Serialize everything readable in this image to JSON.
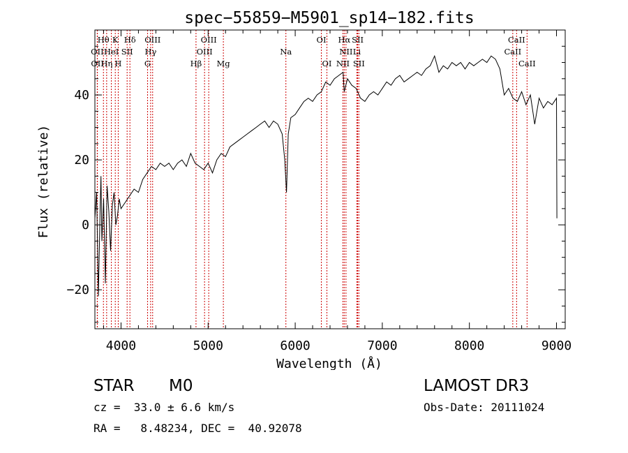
{
  "chart_data": {
    "type": "line",
    "title": "spec−55859−M5901_sp14−182.fits",
    "xlabel": "Wavelength (Å)",
    "ylabel": "Flux (relative)",
    "xlim": [
      3700,
      9100
    ],
    "ylim": [
      -32,
      60
    ],
    "x_ticks": [
      4000,
      5000,
      6000,
      7000,
      8000,
      9000
    ],
    "x_tick_labels": [
      "4000",
      "5000",
      "6000",
      "7000",
      "8000",
      "9000"
    ],
    "y_ticks": [
      -20,
      0,
      20,
      40
    ],
    "y_tick_labels": [
      "−20",
      "0",
      "20",
      "40"
    ],
    "series": [
      {
        "name": "flux",
        "x": [
          3700,
          3720,
          3740,
          3760,
          3770,
          3780,
          3800,
          3820,
          3840,
          3860,
          3880,
          3900,
          3920,
          3940,
          3960,
          3980,
          4000,
          4050,
          4100,
          4150,
          4200,
          4250,
          4300,
          4350,
          4400,
          4450,
          4500,
          4550,
          4600,
          4650,
          4700,
          4750,
          4800,
          4850,
          4900,
          4950,
          5000,
          5050,
          5100,
          5150,
          5200,
          5250,
          5300,
          5350,
          5400,
          5450,
          5500,
          5550,
          5600,
          5650,
          5700,
          5750,
          5800,
          5850,
          5880,
          5900,
          5920,
          5950,
          6000,
          6050,
          6100,
          6150,
          6200,
          6250,
          6300,
          6350,
          6400,
          6450,
          6500,
          6550,
          6563,
          6600,
          6650,
          6700,
          6750,
          6800,
          6850,
          6900,
          6950,
          7000,
          7050,
          7100,
          7150,
          7200,
          7250,
          7300,
          7350,
          7400,
          7450,
          7500,
          7550,
          7600,
          7650,
          7700,
          7750,
          7800,
          7850,
          7900,
          7950,
          8000,
          8050,
          8100,
          8150,
          8200,
          8250,
          8300,
          8350,
          8400,
          8450,
          8500,
          8550,
          8600,
          8650,
          8700,
          8750,
          8800,
          8850,
          8900,
          8950,
          9000,
          9005
        ],
        "y": [
          2,
          10,
          -22,
          5,
          15,
          -5,
          8,
          -18,
          12,
          4,
          -8,
          6,
          10,
          0,
          3,
          8,
          5,
          7,
          9,
          11,
          10,
          14,
          16,
          18,
          17,
          19,
          18,
          19,
          17,
          19,
          20,
          18,
          22,
          19,
          18,
          17,
          19,
          16,
          20,
          22,
          21,
          24,
          25,
          26,
          27,
          28,
          29,
          30,
          31,
          32,
          30,
          32,
          31,
          28,
          20,
          10,
          28,
          33,
          34,
          36,
          38,
          39,
          38,
          40,
          41,
          44,
          43,
          45,
          46,
          47,
          41,
          45,
          43,
          42,
          39,
          38,
          40,
          41,
          40,
          42,
          44,
          43,
          45,
          46,
          44,
          45,
          46,
          47,
          46,
          48,
          49,
          52,
          47,
          49,
          48,
          50,
          49,
          50,
          48,
          50,
          49,
          50,
          51,
          50,
          52,
          51,
          48,
          40,
          42,
          39,
          38,
          41,
          37,
          40,
          31,
          39,
          36,
          38,
          37,
          39,
          2
        ]
      }
    ],
    "line_markers": [
      {
        "label": "Hθ",
        "x": 3798,
        "row": 1
      },
      {
        "label": "K",
        "x": 3934,
        "row": 1
      },
      {
        "label": "Hδ",
        "x": 4102,
        "row": 1
      },
      {
        "label": "OIII",
        "x": 4363,
        "row": 1
      },
      {
        "label": "OIII",
        "x": 5007,
        "row": 1
      },
      {
        "label": "OI",
        "x": 6300,
        "row": 1
      },
      {
        "label": "Hα",
        "x": 6563,
        "row": 1
      },
      {
        "label": "SII",
        "x": 6717,
        "row": 1
      },
      {
        "label": "CaII",
        "x": 8542,
        "row": 1
      },
      {
        "label": "OII",
        "x": 3727,
        "row": 2
      },
      {
        "label": "HeI",
        "x": 3889,
        "row": 2
      },
      {
        "label": "SII",
        "x": 4070,
        "row": 2
      },
      {
        "label": "Hγ",
        "x": 4340,
        "row": 2
      },
      {
        "label": "OIII",
        "x": 4959,
        "row": 2
      },
      {
        "label": "Na",
        "x": 5893,
        "row": 2
      },
      {
        "label": "NII",
        "x": 6583,
        "row": 2
      },
      {
        "label": "Li",
        "x": 6708,
        "row": 2
      },
      {
        "label": "CaII",
        "x": 8498,
        "row": 2
      },
      {
        "label": "OII",
        "x": 3729,
        "row": 3
      },
      {
        "label": "Hη",
        "x": 3835,
        "row": 3
      },
      {
        "label": "H",
        "x": 3968,
        "row": 3
      },
      {
        "label": "G",
        "x": 4305,
        "row": 3
      },
      {
        "label": "Hβ",
        "x": 4861,
        "row": 3
      },
      {
        "label": "Mg",
        "x": 5175,
        "row": 3
      },
      {
        "label": "OI",
        "x": 6364,
        "row": 3
      },
      {
        "label": "NII",
        "x": 6548,
        "row": 3
      },
      {
        "label": "SII",
        "x": 6731,
        "row": 3
      },
      {
        "label": "CaII",
        "x": 8662,
        "row": 3
      }
    ]
  },
  "info": {
    "object_type": "STAR",
    "subclass": "M0",
    "survey": "LAMOST DR3",
    "redshift": "cz =  33.0 ± 6.6 km/s",
    "obs_date": "Obs-Date: 20111024",
    "coords": "RA =   8.48234, DEC =  40.92078"
  },
  "colors": {
    "spectrum": "#000000",
    "marker_line": "#cc0000",
    "axes": "#000000",
    "background": "#ffffff"
  }
}
